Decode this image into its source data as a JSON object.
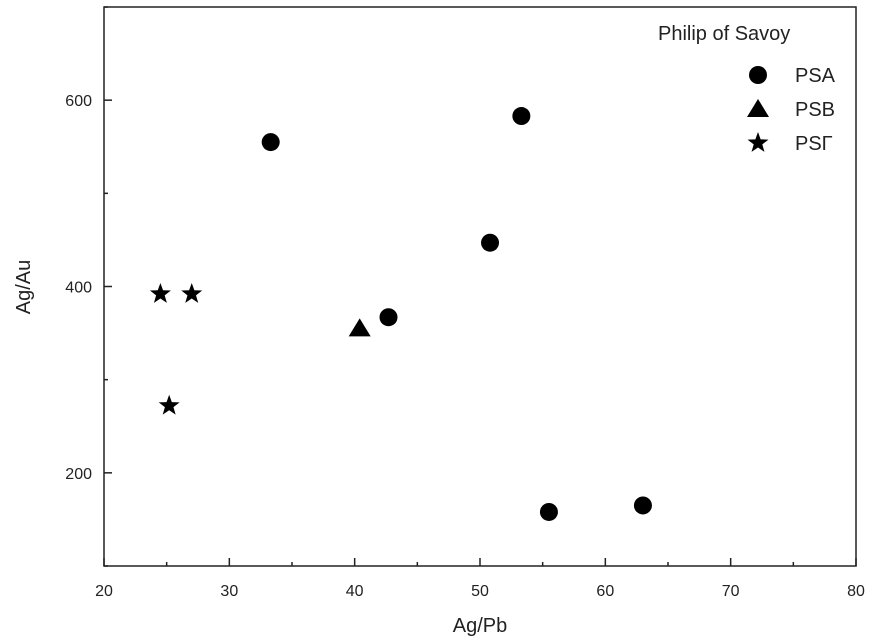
{
  "chart_data": {
    "type": "scatter",
    "xlabel": "Ag/Pb",
    "ylabel": "Ag/Au",
    "xlim": [
      20,
      80
    ],
    "ylim": [
      100,
      700
    ],
    "x_ticks": [
      20,
      30,
      40,
      50,
      60,
      70,
      80
    ],
    "y_ticks": [
      200,
      400,
      600
    ],
    "x_tick_labels": [
      "20",
      "30",
      "40",
      "50",
      "60",
      "70",
      "80"
    ],
    "y_tick_labels": [
      "200",
      "400",
      "600"
    ],
    "grid": false,
    "legend": {
      "title": "Philip of Savoy",
      "placement": "top-right"
    },
    "series": [
      {
        "name": "PSA",
        "marker": "circle",
        "color": "#000000",
        "points": [
          {
            "x": 33.3,
            "y": 555
          },
          {
            "x": 53.3,
            "y": 583
          },
          {
            "x": 50.8,
            "y": 447
          },
          {
            "x": 42.7,
            "y": 367
          },
          {
            "x": 55.5,
            "y": 158
          },
          {
            "x": 63.0,
            "y": 165
          }
        ]
      },
      {
        "name": "PSB",
        "marker": "triangle",
        "color": "#000000",
        "points": [
          {
            "x": 40.4,
            "y": 355
          }
        ]
      },
      {
        "name": "PSΓ",
        "marker": "star",
        "color": "#000000",
        "points": [
          {
            "x": 24.5,
            "y": 392
          },
          {
            "x": 27.0,
            "y": 392
          },
          {
            "x": 25.2,
            "y": 272
          }
        ]
      }
    ]
  }
}
